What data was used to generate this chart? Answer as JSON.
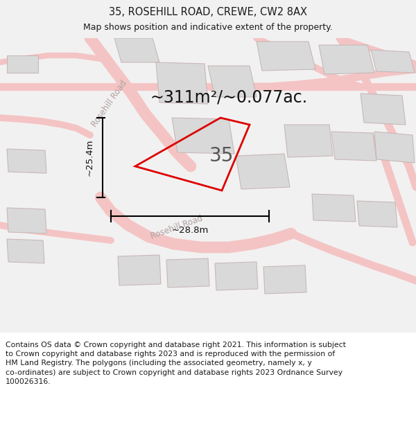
{
  "title": "35, ROSEHILL ROAD, CREWE, CW2 8AX",
  "subtitle": "Map shows position and indicative extent of the property.",
  "area_text": "~311m²/~0.077ac.",
  "property_number": "35",
  "dim_vertical": "~25.4m",
  "dim_horizontal": "~28.8m",
  "footer_text": "Contains OS data © Crown copyright and database right 2021. This information is subject\nto Crown copyright and database rights 2023 and is reproduced with the permission of\nHM Land Registry. The polygons (including the associated geometry, namely x, y\nco-ordinates) are subject to Crown copyright and database rights 2023 Ordnance Survey\n100026316.",
  "bg_color": "#f2f1f1",
  "map_bg": "#f2f1f1",
  "road_color": "#f4c4c4",
  "building_color": "#d9d9d9",
  "building_edge": "#c8b8b8",
  "property_outline_color": "#dd0000",
  "title_fontsize": 10.5,
  "subtitle_fontsize": 9,
  "area_fontsize": 17,
  "number_fontsize": 20,
  "dim_fontsize": 9.5,
  "footer_fontsize": 7.8,
  "road_label_color": "#b0a0a0",
  "road_label_size": 8.5
}
